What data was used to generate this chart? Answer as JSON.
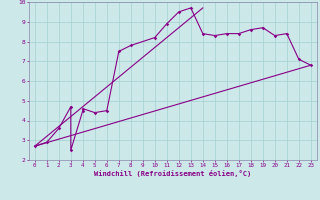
{
  "xlabel": "Windchill (Refroidissement éolien,°C)",
  "bg_color": "#cde8e8",
  "line_color": "#880088",
  "grid_color": "#aad4d4",
  "spine_color": "#8888aa",
  "xlim": [
    -0.5,
    23.5
  ],
  "ylim": [
    2,
    10
  ],
  "xticks": [
    0,
    1,
    2,
    3,
    4,
    5,
    6,
    7,
    8,
    9,
    10,
    11,
    12,
    13,
    14,
    15,
    16,
    17,
    18,
    19,
    20,
    21,
    22,
    23
  ],
  "yticks": [
    2,
    3,
    4,
    5,
    6,
    7,
    8,
    9,
    10
  ],
  "line1_x": [
    0,
    1,
    2,
    3,
    3,
    4,
    4,
    5,
    6,
    7,
    8,
    10,
    11,
    12,
    13,
    14,
    15,
    16,
    17,
    18,
    19,
    20,
    21,
    22,
    23
  ],
  "line1_y": [
    2.7,
    2.9,
    3.6,
    4.7,
    2.5,
    4.5,
    4.6,
    4.4,
    4.5,
    7.5,
    7.8,
    8.2,
    8.9,
    9.5,
    9.7,
    8.4,
    8.3,
    8.4,
    8.4,
    8.6,
    8.7,
    8.3,
    8.4,
    7.1,
    6.8
  ],
  "line2_x": [
    0,
    23
  ],
  "line2_y": [
    2.7,
    6.8
  ],
  "line3_x": [
    0,
    14
  ],
  "line3_y": [
    2.7,
    9.7
  ]
}
